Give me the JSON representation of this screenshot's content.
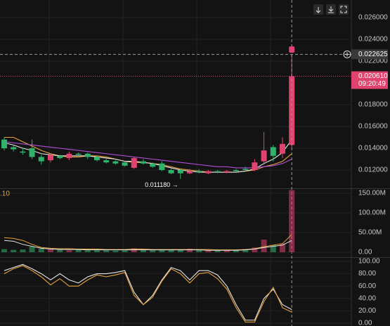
{
  "chart_data": [
    {
      "type": "candlestick",
      "up_color": "#e0436f",
      "down_color": "#2fb36a",
      "open": [
        0.0148,
        0.0141,
        0.0137,
        0.014,
        0.0132,
        0.0129,
        0.0133,
        0.0131,
        0.0135,
        0.0135,
        0.0132,
        0.0129,
        0.0128,
        0.0127,
        0.0122,
        0.0128,
        0.0126,
        0.0126,
        0.012,
        0.012,
        0.0117,
        0.0119,
        0.0117,
        0.0119,
        0.0118,
        0.012,
        0.0121,
        0.012,
        0.0128,
        0.0141,
        0.0135,
        0.0143
      ],
      "high": [
        0.015,
        0.0143,
        0.014,
        0.0148,
        0.0134,
        0.0135,
        0.0134,
        0.0137,
        0.0136,
        0.0136,
        0.0133,
        0.0131,
        0.0129,
        0.0128,
        0.0132,
        0.013,
        0.0127,
        0.0128,
        0.0122,
        0.0121,
        0.0121,
        0.0121,
        0.012,
        0.012,
        0.012,
        0.0121,
        0.0123,
        0.013,
        0.0155,
        0.0143,
        0.015,
        0.02262
      ],
      "low": [
        0.0138,
        0.0137,
        0.0134,
        0.013,
        0.0125,
        0.0127,
        0.013,
        0.0129,
        0.0132,
        0.013,
        0.0128,
        0.0126,
        0.0125,
        0.0123,
        0.0121,
        0.0125,
        0.0122,
        0.0119,
        0.0116,
        0.01118,
        0.0116,
        0.0117,
        0.0116,
        0.0117,
        0.0117,
        0.0118,
        0.0119,
        0.0119,
        0.0125,
        0.0128,
        0.0131,
        0.014
      ],
      "close": [
        0.014,
        0.0139,
        0.0136,
        0.0132,
        0.0128,
        0.0134,
        0.0131,
        0.0135,
        0.0134,
        0.0132,
        0.0129,
        0.0127,
        0.0126,
        0.0124,
        0.0131,
        0.0126,
        0.0123,
        0.012,
        0.0117,
        0.0117,
        0.0119,
        0.0118,
        0.0119,
        0.0118,
        0.0119,
        0.0119,
        0.012,
        0.0127,
        0.0138,
        0.0133,
        0.0144,
        0.02061
      ],
      "moving_averages": [
        {
          "color": "#e8a33c",
          "values": [
            0.015,
            0.015,
            0.0146,
            0.0142,
            0.0138,
            0.0135,
            0.0133,
            0.0132,
            0.0132,
            0.0133,
            0.0133,
            0.0132,
            0.013,
            0.0128,
            0.0127,
            0.0127,
            0.0126,
            0.0125,
            0.0123,
            0.0121,
            0.012,
            0.0119,
            0.0118,
            0.0118,
            0.0118,
            0.0118,
            0.0119,
            0.012,
            0.0123,
            0.0125,
            0.0128,
            0.0135
          ]
        },
        {
          "color": "#e6e6e6",
          "values": [
            0.0145,
            0.0143,
            0.014,
            0.0138,
            0.0135,
            0.0134,
            0.0133,
            0.0133,
            0.0133,
            0.0133,
            0.0132,
            0.0131,
            0.013,
            0.0128,
            0.0128,
            0.0127,
            0.0126,
            0.0124,
            0.0122,
            0.012,
            0.0119,
            0.0118,
            0.0118,
            0.0118,
            0.0118,
            0.0118,
            0.0119,
            0.0121,
            0.0126,
            0.013,
            0.0136,
            0.0148
          ]
        },
        {
          "color": "#b04fd6",
          "values": [
            0.0146,
            0.0145,
            0.0144,
            0.0143,
            0.0142,
            0.0141,
            0.014,
            0.0139,
            0.0138,
            0.0137,
            0.0136,
            0.0135,
            0.0134,
            0.0133,
            0.0132,
            0.0131,
            0.013,
            0.0129,
            0.0128,
            0.0127,
            0.0126,
            0.0125,
            0.0124,
            0.0123,
            0.0123,
            0.0122,
            0.0122,
            0.0122,
            0.0123,
            0.0124,
            0.0126,
            0.013
          ]
        }
      ],
      "ylim": [
        0.010323,
        0.027613
      ],
      "yticks": [
        {
          "value": 0.026,
          "label": "0.026000"
        },
        {
          "value": 0.024,
          "label": "0.024000"
        },
        {
          "value": 0.022,
          "label": "0.022000"
        },
        {
          "value": 0.018,
          "label": "0.018000"
        },
        {
          "value": 0.016,
          "label": "0.016000"
        },
        {
          "value": 0.014,
          "label": "0.014000"
        },
        {
          "value": 0.012,
          "label": "0.012000"
        }
      ],
      "last_price": {
        "value": 0.02061,
        "label": "0.020610",
        "time": "09:20:49",
        "color": "#e0436f"
      },
      "crosshair_price": {
        "value": 0.022625,
        "label": "0.022625"
      },
      "low_annotation": {
        "index": 19,
        "value": 0.01118,
        "label": "0.011180 →"
      }
    },
    {
      "type": "bar",
      "label": ".10",
      "values": [
        8000000,
        6000000,
        7000000,
        14000000,
        9000000,
        7000000,
        6000000,
        5000000,
        6000000,
        5000000,
        5000000,
        5000000,
        4000000,
        5000000,
        10000000,
        6000000,
        5000000,
        6000000,
        7000000,
        6000000,
        9000000,
        6000000,
        5000000,
        5000000,
        5000000,
        6000000,
        8000000,
        12000000,
        32000000,
        18000000,
        22000000,
        158000000
      ],
      "moving_averages": [
        {
          "color": "#e8a33c",
          "values": [
            37000000,
            35000000,
            30000000,
            20000000,
            12000000,
            10000000,
            9000000,
            9000000,
            8000000,
            8000000,
            8000000,
            7000000,
            7000000,
            7000000,
            8000000,
            8000000,
            7000000,
            7000000,
            7000000,
            7000000,
            7000000,
            7000000,
            7000000,
            6000000,
            6000000,
            6000000,
            7000000,
            9000000,
            14000000,
            18000000,
            22000000,
            45000000
          ]
        },
        {
          "color": "#e6e6e6",
          "values": [
            30000000,
            28000000,
            20000000,
            15000000,
            10000000,
            8000000,
            7000000,
            7000000,
            7000000,
            6000000,
            6000000,
            6000000,
            6000000,
            6000000,
            6000000,
            6000000,
            6000000,
            6000000,
            6000000,
            6000000,
            6000000,
            6000000,
            5000000,
            5000000,
            5000000,
            5000000,
            6000000,
            8000000,
            12000000,
            15000000,
            18000000,
            30000000
          ]
        }
      ],
      "ylim": [
        -10700000,
        158900000
      ],
      "yticks": [
        {
          "value": 150000000,
          "label": "150.00M"
        },
        {
          "value": 100000000,
          "label": "100.00M"
        },
        {
          "value": 50000000,
          "label": "50.00M"
        },
        {
          "value": 0,
          "label": "0.00"
        }
      ]
    },
    {
      "type": "line",
      "series": [
        {
          "color": "#e6e6e6",
          "values": [
            85,
            90,
            95,
            88,
            80,
            70,
            80,
            70,
            65,
            75,
            80,
            80,
            82,
            85,
            50,
            30,
            45,
            70,
            90,
            85,
            70,
            85,
            85,
            78,
            60,
            30,
            5,
            5,
            40,
            55,
            30,
            22
          ]
        },
        {
          "color": "#e8a33c",
          "values": [
            80,
            88,
            93,
            85,
            75,
            62,
            72,
            60,
            60,
            70,
            78,
            75,
            78,
            82,
            45,
            30,
            42,
            68,
            88,
            80,
            65,
            80,
            82,
            72,
            55,
            25,
            2,
            2,
            35,
            58,
            25,
            18
          ]
        }
      ],
      "ylim": [
        -4.5,
        104.5
      ],
      "yticks": [
        {
          "value": 100,
          "label": "100.00"
        },
        {
          "value": 80,
          "label": "80.00"
        },
        {
          "value": 60,
          "label": "60.00"
        },
        {
          "value": 40,
          "label": "40.00"
        },
        {
          "value": 20,
          "label": "20.00"
        },
        {
          "value": 0,
          "label": "0.00"
        }
      ]
    }
  ]
}
